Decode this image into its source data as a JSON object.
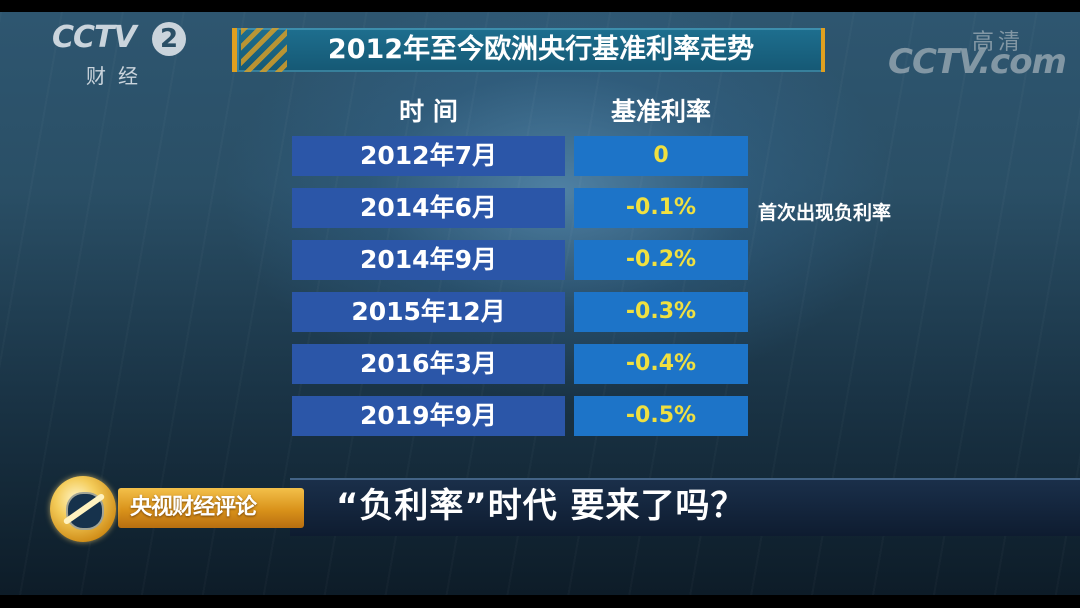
{
  "channel_logo": {
    "brand": "CCTV",
    "number": "2",
    "subtitle": "财经"
  },
  "watermark": {
    "brand": "CCTV.com",
    "hd_label": "高清"
  },
  "title": "2012年至今欧洲央行基准利率走势",
  "table": {
    "headers": [
      "时 间",
      "基准利率"
    ],
    "rows": [
      {
        "time": "2012年7月",
        "rate": "0"
      },
      {
        "time": "2014年6月",
        "rate": "-0.1%"
      },
      {
        "time": "2014年9月",
        "rate": "-0.2%"
      },
      {
        "time": "2015年12月",
        "rate": "-0.3%"
      },
      {
        "time": "2016年3月",
        "rate": "-0.4%"
      },
      {
        "time": "2019年9月",
        "rate": "-0.5%"
      }
    ]
  },
  "note": "首次出现负利率",
  "program": {
    "name": "央视财经评论"
  },
  "headline": "“负利率”时代 要来了吗？",
  "colors": {
    "time_cell": "#2b56a8",
    "rate_cell": "#1d74c8",
    "rate_text": "#f0e040",
    "accent": "#e0a020"
  }
}
